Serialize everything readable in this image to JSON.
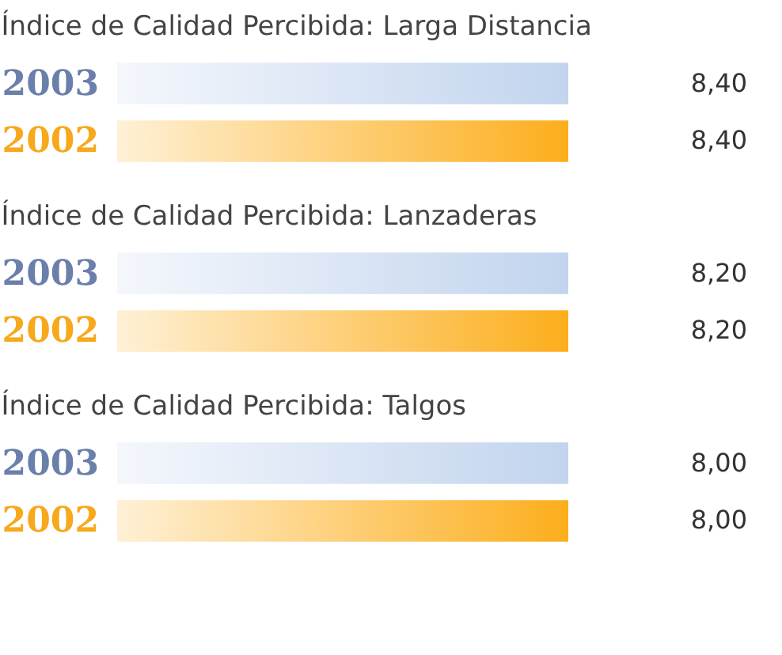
{
  "chart_data": [
    {
      "type": "bar",
      "orientation": "horizontal",
      "title": "Índice de Calidad Percibida: Larga Distancia",
      "categories": [
        "2003",
        "2002"
      ],
      "values": [
        8.4,
        8.4
      ],
      "colors": [
        "#c2d4ee",
        "#fcae1c"
      ],
      "value_labels": [
        "8,40",
        "8,40"
      ],
      "tick_labels": "y"
    },
    {
      "type": "bar",
      "orientation": "horizontal",
      "title": "Índice de Calidad Percibida: Lanzaderas",
      "categories": [
        "2003",
        "2002"
      ],
      "values": [
        8.2,
        8.2
      ],
      "colors": [
        "#c2d4ee",
        "#fcae1c"
      ],
      "value_labels": [
        "8,20",
        "8,20"
      ],
      "tick_labels": "y"
    },
    {
      "type": "bar",
      "orientation": "horizontal",
      "title": "Índice de Calidad Percibida: Talgos",
      "categories": [
        "2003",
        "2002"
      ],
      "values": [
        8.0,
        8.0
      ],
      "colors": [
        "#c2d4ee",
        "#fcae1c"
      ],
      "value_labels": [
        "8,00",
        "8,00"
      ],
      "tick_labels": "y"
    }
  ]
}
